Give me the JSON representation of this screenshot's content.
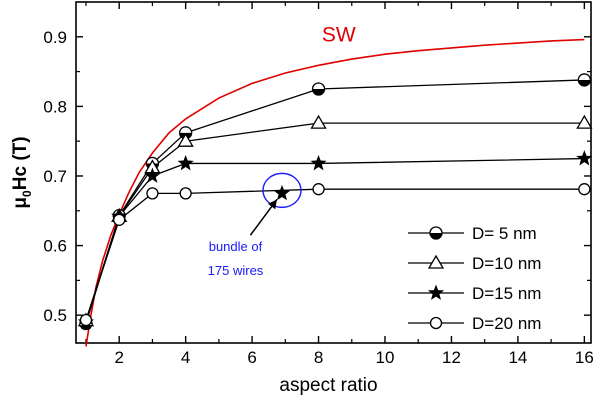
{
  "colors": {
    "sw": "#e00000",
    "annotation": "#1a1aff",
    "ink": "#000000"
  },
  "chart_data": {
    "type": "line",
    "xlabel": "aspect ratio",
    "ylabel_main": "μ",
    "ylabel_sub": "0",
    "ylabel_rest": "Hc (T)",
    "xlim": [
      0.7,
      16.2
    ],
    "ylim": [
      0.46,
      0.95
    ],
    "xticks": [
      2,
      4,
      6,
      8,
      10,
      12,
      14,
      16
    ],
    "yticks": [
      0.5,
      0.6,
      0.7,
      0.8,
      0.9
    ],
    "grid": false,
    "legend_position": "bottom-right",
    "series": [
      {
        "name": "D= 5 nm",
        "marker": "half-filled-circle",
        "x": [
          1,
          2,
          3,
          4,
          8,
          16
        ],
        "y": [
          0.488,
          0.643,
          0.718,
          0.762,
          0.825,
          0.838
        ]
      },
      {
        "name": "D=10 nm",
        "marker": "open-triangle",
        "x": [
          1,
          2,
          3,
          4,
          8,
          16
        ],
        "y": [
          0.492,
          0.642,
          0.712,
          0.75,
          0.776,
          0.776
        ]
      },
      {
        "name": "D=15 nm",
        "marker": "filled-star",
        "x": [
          1,
          2,
          3,
          4,
          8,
          16
        ],
        "y": [
          0.49,
          0.642,
          0.7,
          0.718,
          0.718,
          0.725
        ]
      },
      {
        "name": "D=20 nm",
        "marker": "open-circle",
        "x": [
          1,
          2,
          3,
          4,
          8,
          16
        ],
        "y": [
          0.493,
          0.637,
          0.675,
          0.675,
          0.681,
          0.681
        ]
      }
    ],
    "single_point": {
      "x": 6.9,
      "y": 0.675,
      "marker": "filled-star"
    },
    "sw_curve": {
      "name": "SW",
      "x": [
        1.0,
        1.15,
        1.3,
        1.5,
        1.75,
        2.0,
        2.3,
        2.6,
        3.0,
        3.5,
        4.0,
        5.0,
        6.0,
        7.0,
        8.0,
        9.0,
        10.0,
        11.0,
        12.0,
        13.0,
        14.0,
        15.0,
        16.0
      ],
      "y": [
        0.455,
        0.5,
        0.54,
        0.578,
        0.615,
        0.645,
        0.677,
        0.705,
        0.733,
        0.762,
        0.782,
        0.812,
        0.833,
        0.848,
        0.859,
        0.868,
        0.875,
        0.88,
        0.884,
        0.888,
        0.891,
        0.894,
        0.896
      ]
    },
    "annotation": {
      "line1": "bundle of",
      "line2": "175 wires"
    }
  }
}
